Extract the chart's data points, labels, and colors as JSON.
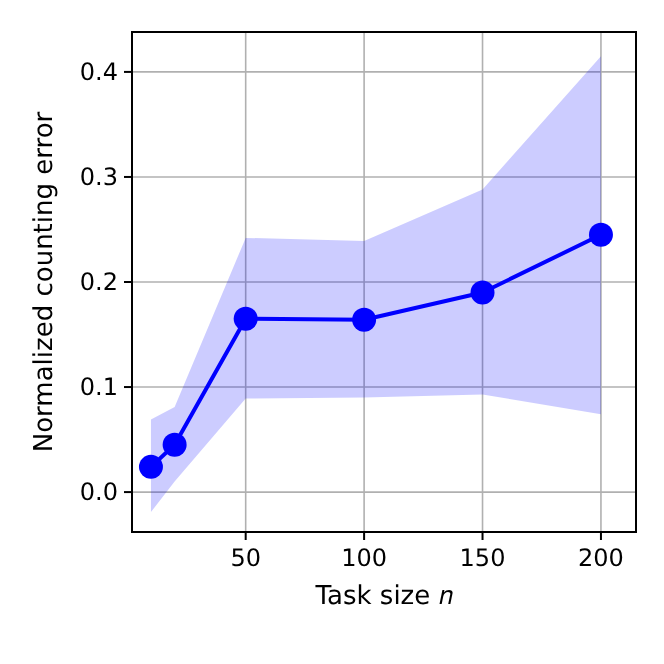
{
  "chart_data": {
    "type": "line",
    "xlabel": "Task size 𝑛",
    "ylabel": "Normalized counting error",
    "x": [
      10,
      20,
      50,
      100,
      150,
      200
    ],
    "series": [
      {
        "color": "#0000ff",
        "values": [
          0.024,
          0.045,
          0.165,
          0.164,
          0.19,
          0.245
        ],
        "lower": [
          -0.019,
          0.01,
          0.089,
          0.09,
          0.093,
          0.074
        ],
        "upper": [
          0.069,
          0.081,
          0.242,
          0.239,
          0.288,
          0.415
        ]
      }
    ],
    "xlim": [
      2,
      214.8
    ],
    "ylim": [
      -0.038,
      0.438
    ],
    "xticks": [
      50,
      100,
      150,
      200
    ],
    "yticks": [
      {
        "value": 0,
        "label": "0.0"
      },
      {
        "value": 0.1,
        "label": "0.1"
      },
      {
        "value": 0.2,
        "label": "0.2"
      },
      {
        "value": 0.3,
        "label": "0.3"
      },
      {
        "value": 0.4,
        "label": "0.4"
      }
    ],
    "grid": true,
    "marker": "circle",
    "line_style": "solid"
  }
}
